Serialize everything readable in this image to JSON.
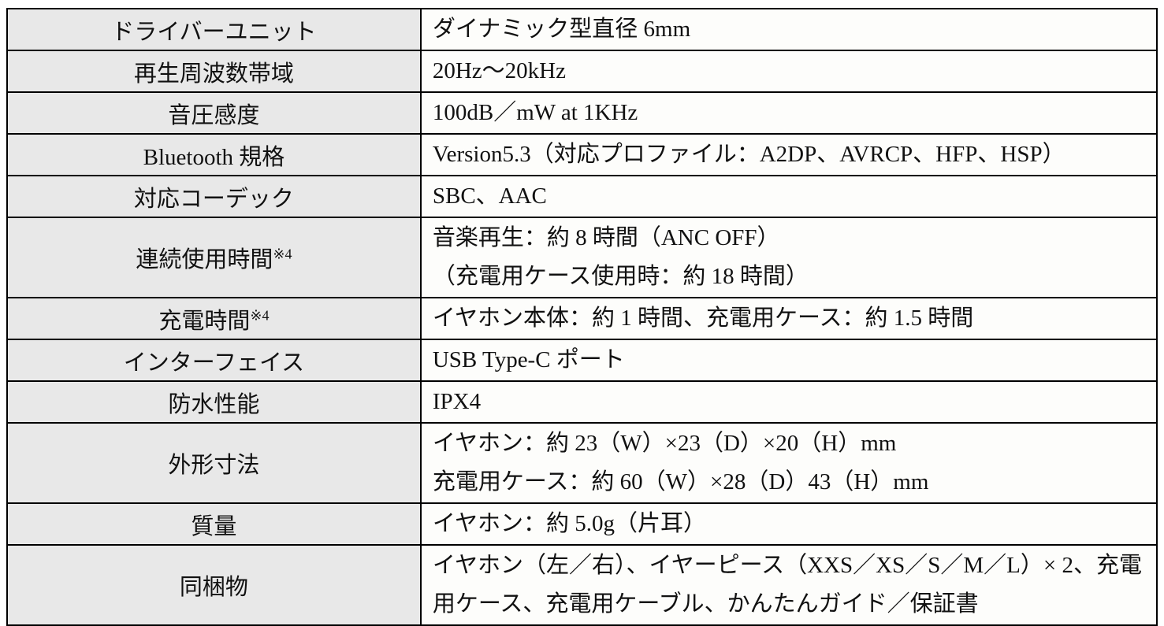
{
  "colors": {
    "label_bg": "#e8e8e8",
    "value_bg": "#fdfdfb",
    "border": "#000000",
    "text": "#111111"
  },
  "table": {
    "rows": [
      {
        "label": "ドライバーユニット",
        "lines": [
          "ダイナミック型直径 6mm"
        ]
      },
      {
        "label": "再生周波数帯域",
        "lines": [
          "20Hz～20kHz"
        ]
      },
      {
        "label": "音圧感度",
        "lines": [
          "100dB／mW at 1KHz"
        ]
      },
      {
        "label": "Bluetooth 規格",
        "lines": [
          "Version5.3（対応プロファイル：A2DP、AVRCP、HFP、HSP）"
        ]
      },
      {
        "label": "対応コーデック",
        "lines": [
          "SBC、AAC"
        ]
      },
      {
        "label": "連続使用時間",
        "label_sup": "※4",
        "lines": [
          "音楽再生：約 8 時間（ANC OFF）",
          "（充電用ケース使用時：約 18 時間）"
        ]
      },
      {
        "label": "充電時間",
        "label_sup": "※4",
        "lines": [
          "イヤホン本体：約 1 時間、充電用ケース：約 1.5 時間"
        ]
      },
      {
        "label": "インターフェイス",
        "lines": [
          "USB Type-C ポート"
        ]
      },
      {
        "label": "防水性能",
        "lines": [
          "IPX4"
        ]
      },
      {
        "label": "外形寸法",
        "lines": [
          "イヤホン：約 23（W）×23（D）×20（H）mm",
          "充電用ケース：約 60（W）×28（D）43（H）mm"
        ]
      },
      {
        "label": "質量",
        "lines": [
          "イヤホン：約 5.0g（片耳）"
        ]
      },
      {
        "label": "同梱物",
        "lines": [
          "イヤホン（左／右）、イヤーピース（XXS／XS／S／M／L）× 2、充電用ケース、充電用ケーブル、かんたんガイド／保証書"
        ]
      }
    ]
  }
}
